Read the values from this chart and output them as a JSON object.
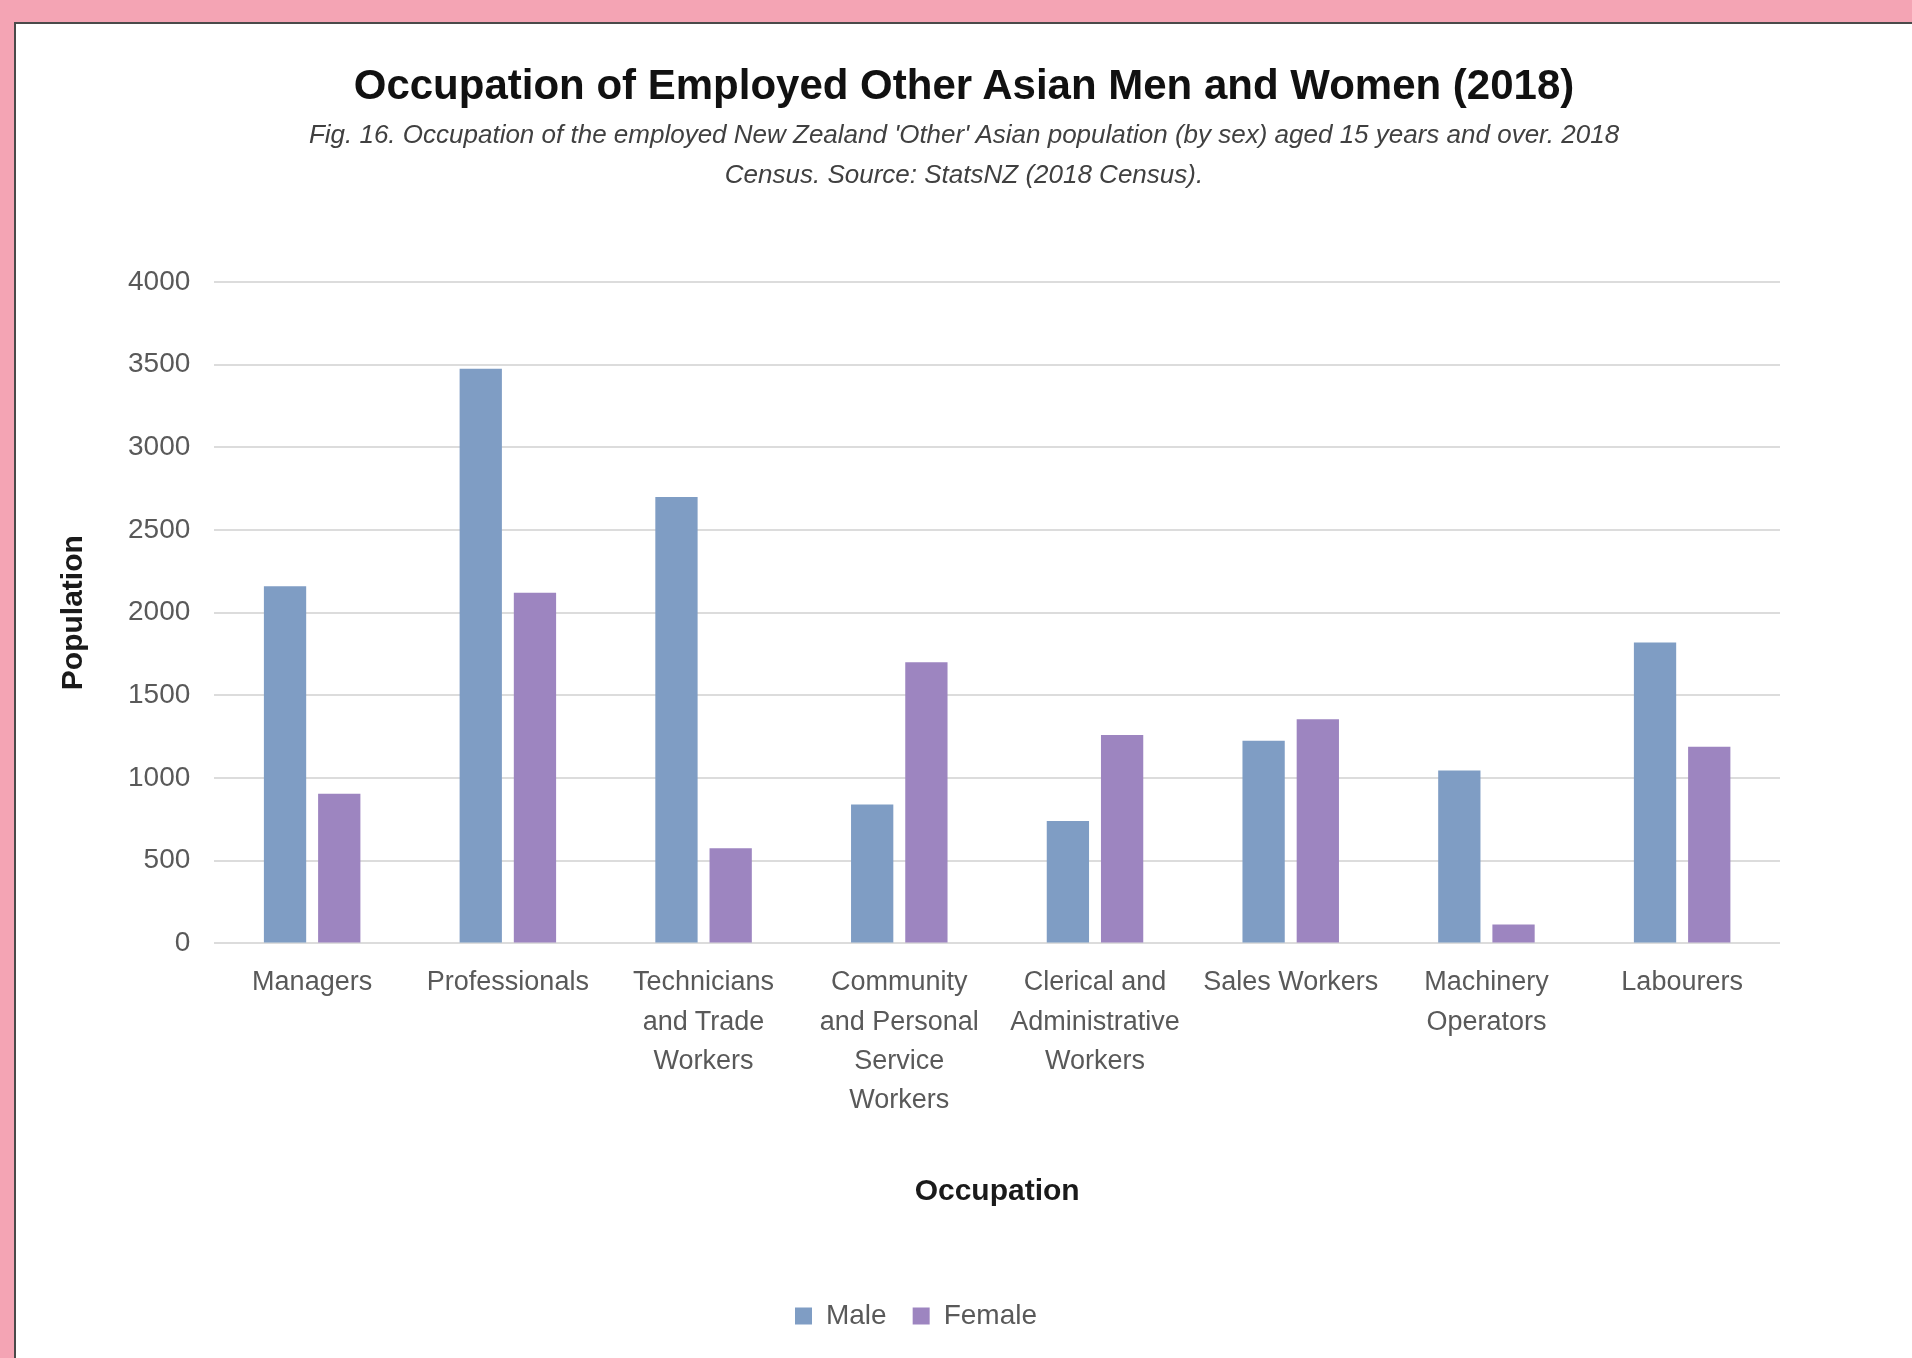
{
  "chart_data": {
    "type": "bar",
    "title": "Occupation of Employed Other Asian Men and Women (2018)",
    "subtitle": "Fig. 16. Occupation of the employed New Zealand 'Other' Asian population (by sex) aged 15 years and over. 2018 Census. Source: StatsNZ (2018 Census).",
    "xlabel": "Occupation",
    "ylabel": "Population",
    "categories": [
      "Managers",
      "Professionals",
      "Technicians and Trade Workers",
      "Community and Personal Service Workers",
      "Clerical and Administrative Workers",
      "Sales Workers",
      "Machinery Operators",
      "Labourers"
    ],
    "series": [
      {
        "name": "Male",
        "color": "#7f9dc4",
        "values": [
          2160,
          3475,
          2700,
          840,
          740,
          1225,
          1045,
          1820
        ]
      },
      {
        "name": "Female",
        "color": "#9d85c0",
        "values": [
          905,
          2120,
          575,
          1700,
          1260,
          1355,
          115,
          1190
        ]
      }
    ],
    "ylim": [
      0,
      4000
    ],
    "yticks": [
      0,
      500,
      1000,
      1500,
      2000,
      2500,
      3000,
      3500,
      4000
    ],
    "grid": "y",
    "legend": "bottom"
  }
}
